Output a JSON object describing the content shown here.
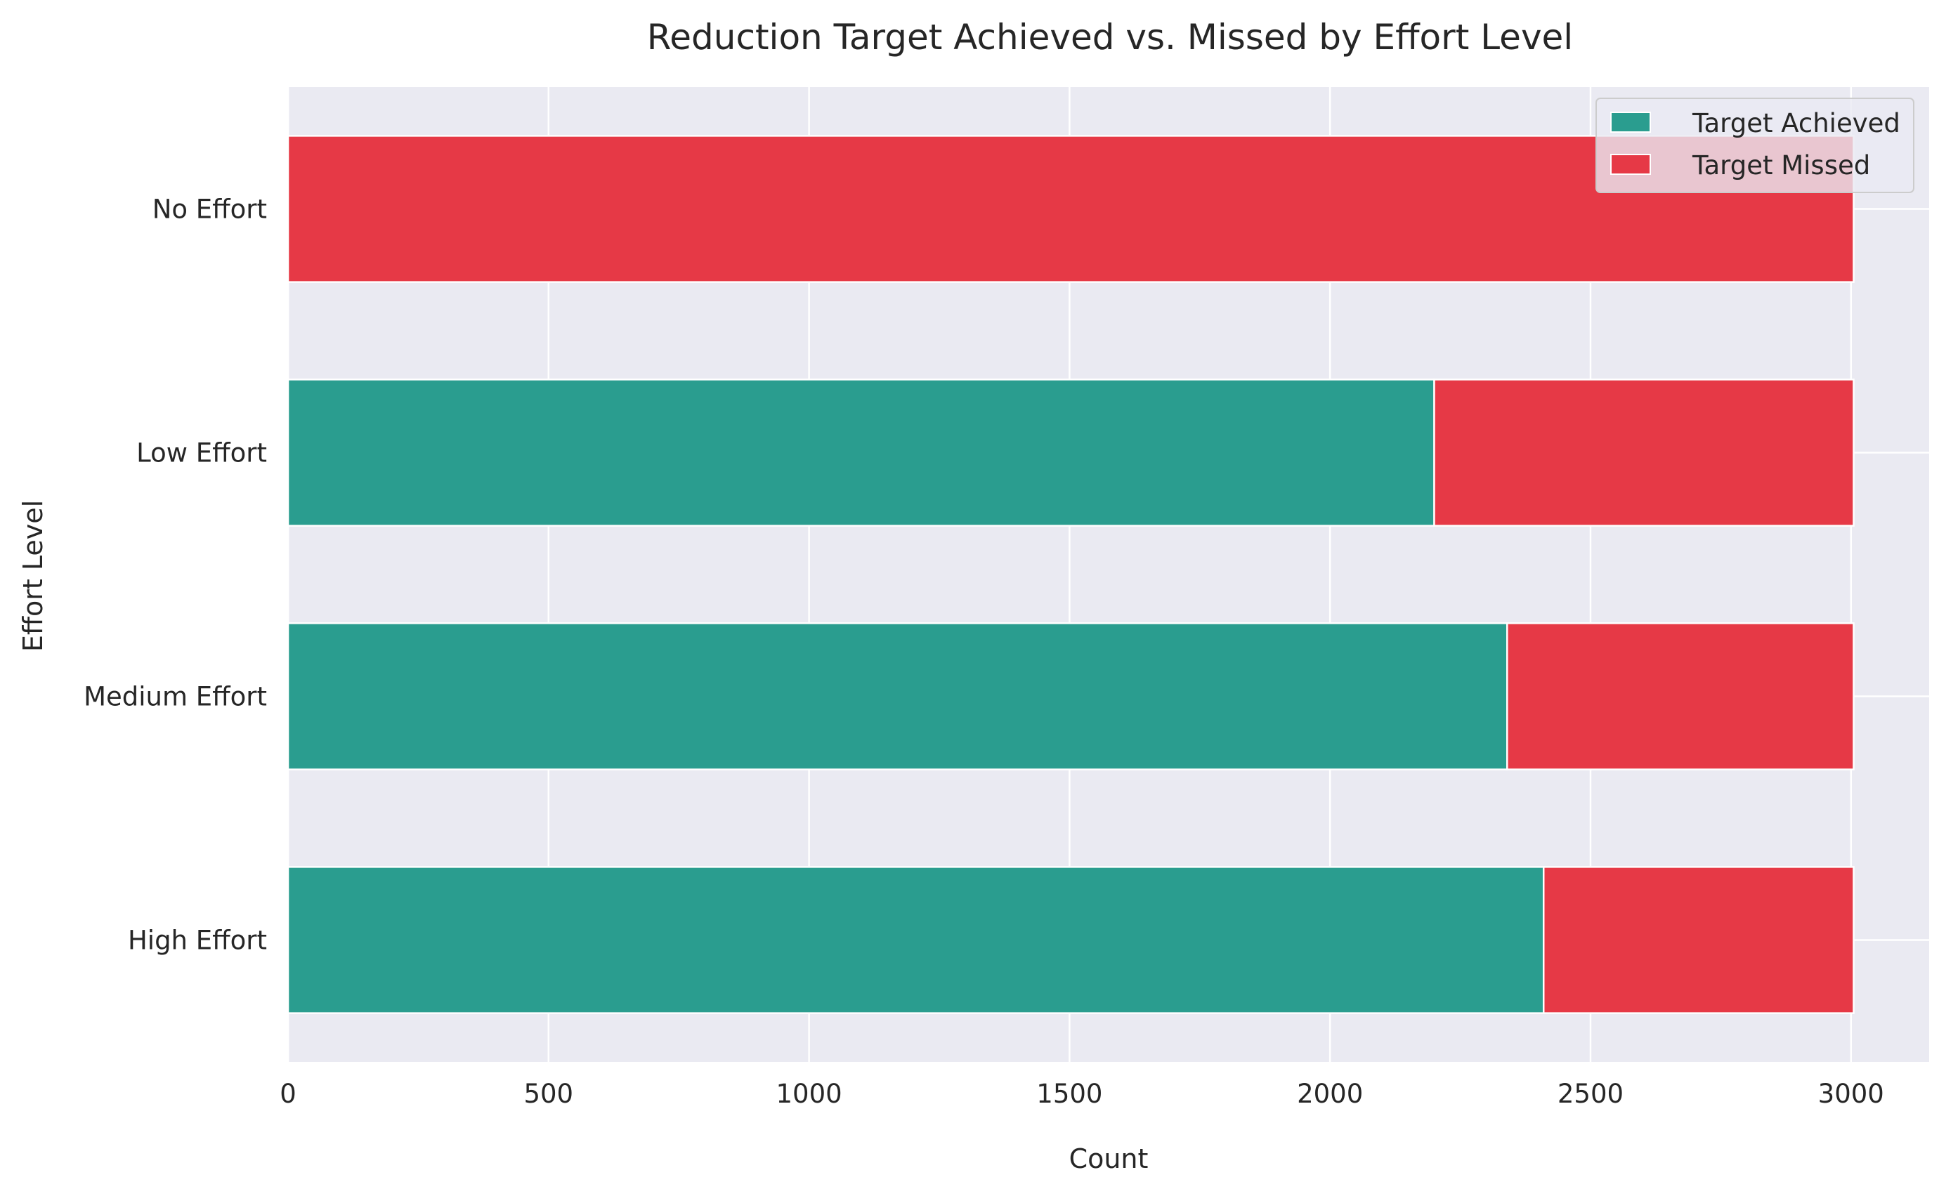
{
  "chart_data": {
    "type": "bar",
    "orientation": "horizontal",
    "stacked": true,
    "title": "Reduction Target Achieved vs. Missed by Effort Level",
    "xlabel": "Count",
    "ylabel": "Effort Level",
    "categories": [
      "High Effort",
      "Medium Effort",
      "Low Effort",
      "No Effort"
    ],
    "series": [
      {
        "name": "Target Achieved",
        "color": "#2a9d8f",
        "values": [
          2410,
          2340,
          2200,
          0
        ]
      },
      {
        "name": "Target Missed",
        "color": "#e63946",
        "values": [
          595,
          665,
          805,
          3005
        ]
      }
    ],
    "xlim": [
      0,
      3150
    ],
    "xticks": [
      0,
      500,
      1000,
      1500,
      2000,
      2500,
      3000
    ],
    "xtick_labels": [
      "0",
      "500",
      "1000",
      "1500",
      "2000",
      "2500",
      "3000"
    ],
    "grid": true,
    "legend_position": "top-right",
    "background_color": "#eaeaf2"
  }
}
